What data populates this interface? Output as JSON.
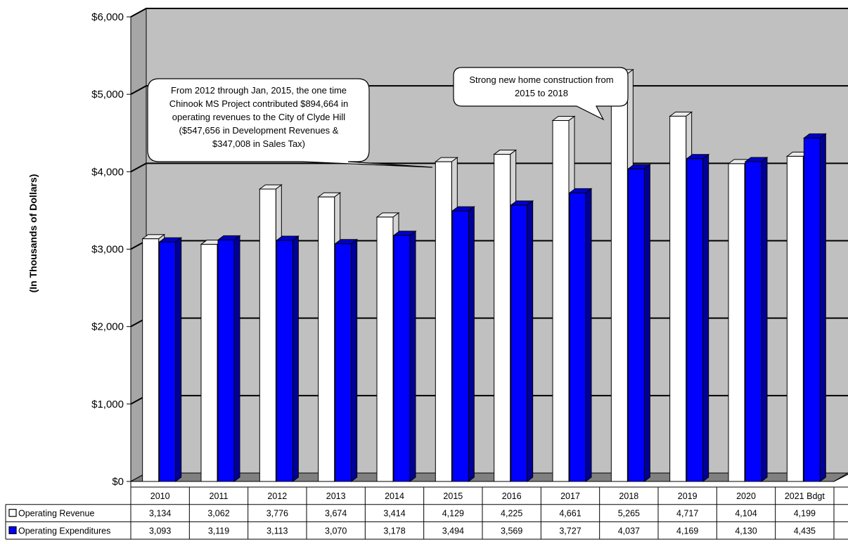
{
  "chart_data": {
    "type": "bar",
    "ylabel": "(In Thousands of Dollars)",
    "ylim": [
      0,
      6000
    ],
    "y_ticks": [
      "$0",
      "$1,000",
      "$2,000",
      "$3,000",
      "$4,000",
      "$5,000",
      "$6,000"
    ],
    "grid": true,
    "categories": [
      "2010",
      "2011",
      "2012",
      "2013",
      "2014",
      "2015",
      "2016",
      "2017",
      "2018",
      "2019",
      "2020",
      "2021 Bdgt"
    ],
    "series": [
      {
        "name": "Operating Revenue",
        "color": "#ffffff",
        "values": [
          3134,
          3062,
          3776,
          3674,
          3414,
          4129,
          4225,
          4661,
          5265,
          4717,
          4104,
          4199
        ],
        "labels": [
          "3,134",
          "3,062",
          "3,776",
          "3,674",
          "3,414",
          "4,129",
          "4,225",
          "4,661",
          "5,265",
          "4,717",
          "4,104",
          "4,199"
        ]
      },
      {
        "name": "Operating Expenditures",
        "color": "#0000ff",
        "values": [
          3093,
          3119,
          3113,
          3070,
          3178,
          3494,
          3569,
          3727,
          4037,
          4169,
          4130,
          4435
        ],
        "labels": [
          "3,093",
          "3,119",
          "3,113",
          "3,070",
          "3,178",
          "3,494",
          "3,569",
          "3,727",
          "4,037",
          "4,169",
          "4,130",
          "4,435"
        ]
      }
    ],
    "legend_position": "data-table-left",
    "annotations": [
      {
        "lines": [
          "From 2012 through Jan, 2015, the one time",
          "Chinook MS Project contributed $894,664 in",
          "operating revenues to the City of Clyde Hill",
          "($547,656 in Development Revenues &",
          "$347,008 in Sales Tax)"
        ]
      },
      {
        "lines": [
          "Strong new home construction from",
          "2015 to 2018"
        ]
      }
    ]
  }
}
